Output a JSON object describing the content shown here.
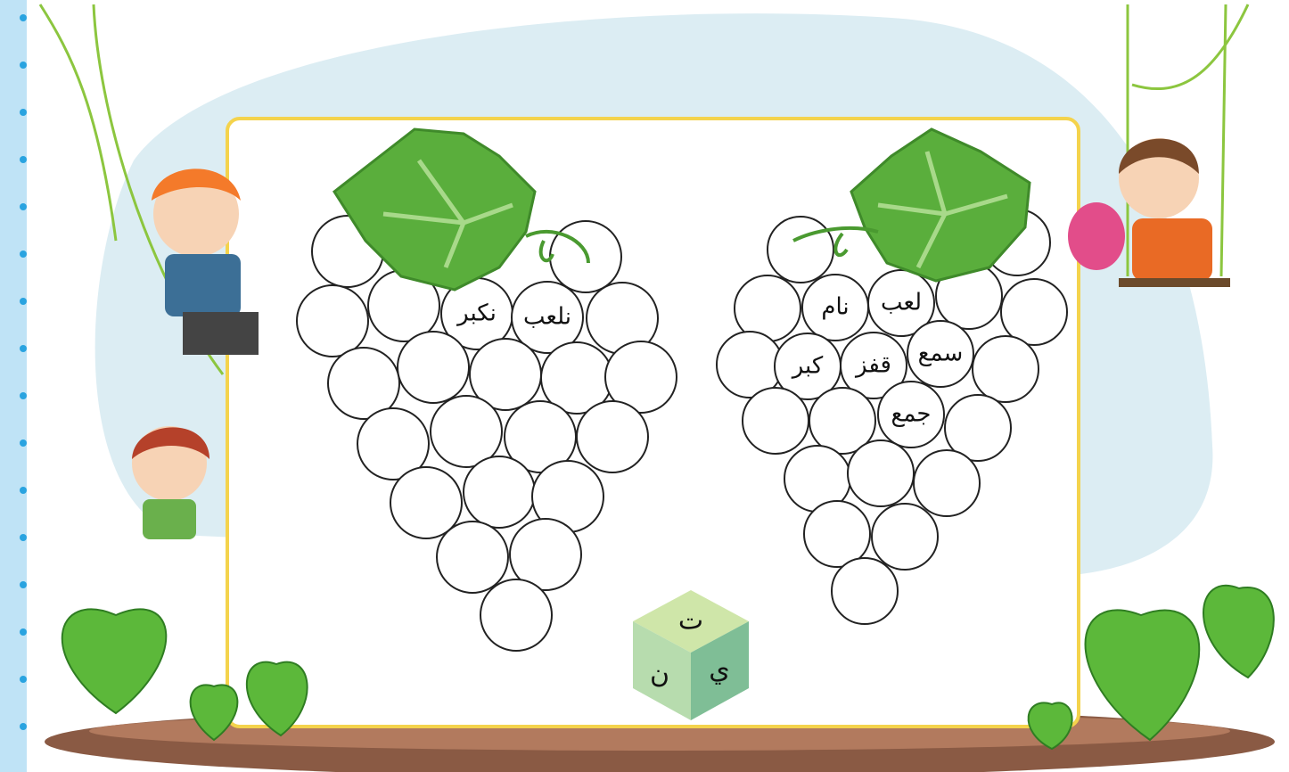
{
  "grapes": [
    {
      "words": [
        "نكبر",
        "نلعب"
      ]
    },
    {
      "words": [
        "نام",
        "لعب",
        "كبر",
        "قفز",
        "سمع",
        "جمع"
      ]
    }
  ],
  "cube": {
    "top": "ت",
    "left": "ن",
    "right": "ي"
  }
}
